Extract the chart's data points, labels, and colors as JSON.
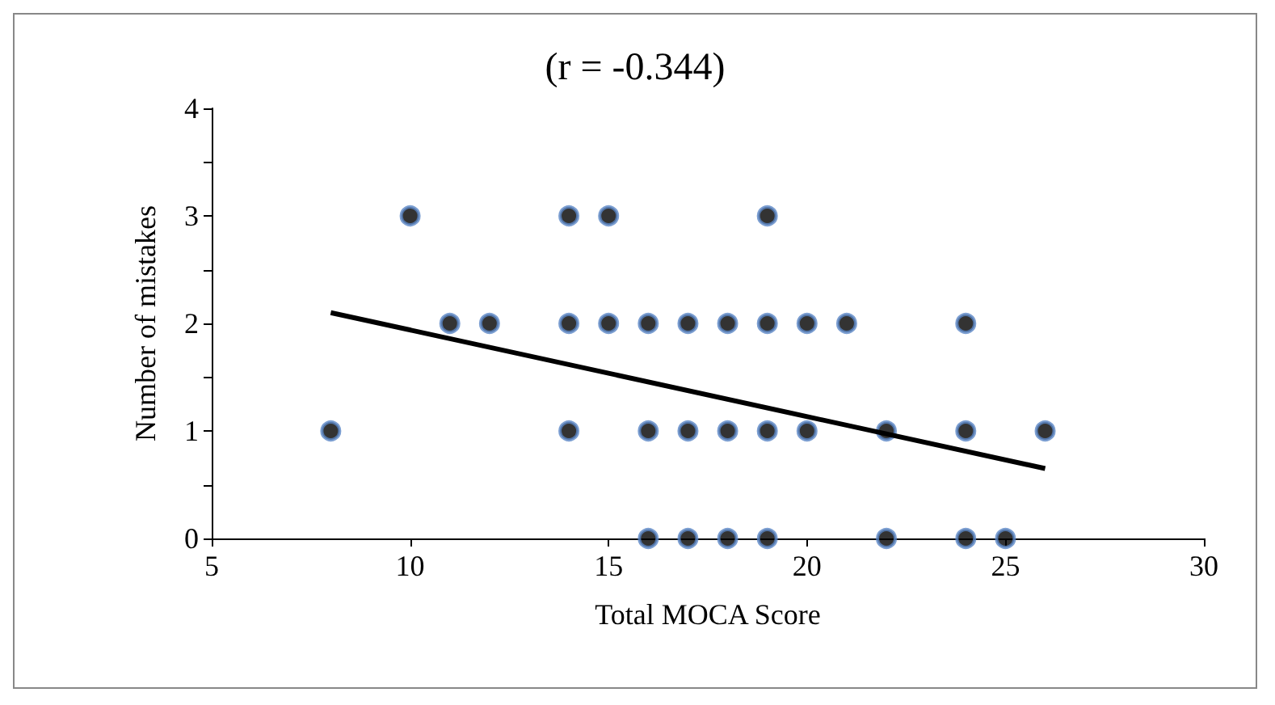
{
  "chart_data": {
    "type": "scatter",
    "title": "(r = -0.344)",
    "xlabel": "Total MOCA Score",
    "ylabel": "Number of mistakes",
    "series": [
      {
        "color": "#000000",
        "x": [
          8,
          14,
          16,
          17,
          18,
          19,
          20,
          22,
          24,
          26,
          11,
          12,
          14,
          15,
          16,
          17,
          18,
          19,
          20,
          21,
          24,
          16,
          17,
          18,
          19,
          22,
          24,
          25,
          10,
          14,
          15,
          19
        ],
        "values": [
          1,
          1,
          1,
          1,
          1,
          1,
          1,
          1,
          1,
          1,
          2,
          2,
          2,
          2,
          2,
          2,
          2,
          2,
          2,
          2,
          2,
          0,
          0,
          0,
          0,
          0,
          0,
          0,
          3,
          3,
          3,
          3
        ],
        "marker": "circle"
      },
      {
        "type": "line",
        "color": "#000000",
        "x": [
          8,
          26
        ],
        "values": [
          2.1,
          0.65
        ],
        "marker": "none"
      }
    ],
    "xlim": [
      5,
      30
    ],
    "xticks": [
      5,
      10,
      15,
      20,
      25,
      30
    ],
    "ylim": [
      0,
      4
    ],
    "yticks": [
      0,
      1,
      2,
      3,
      4
    ],
    "grid": false
  }
}
